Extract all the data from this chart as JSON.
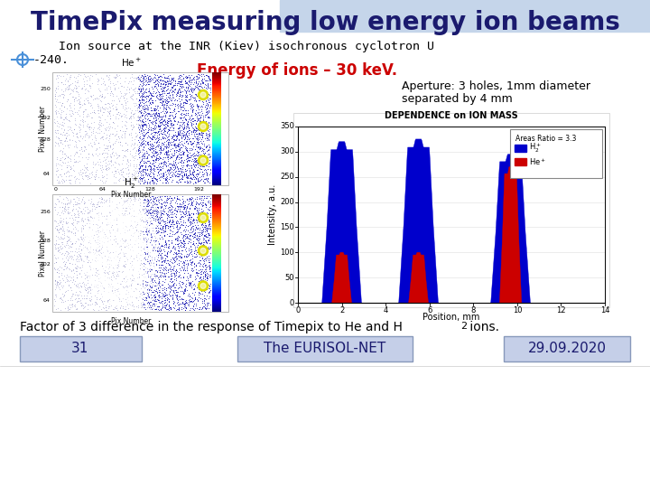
{
  "title": "TimePix measuring low energy ion beams",
  "title_color": "#1a1a6e",
  "subtitle_line1": "Ion source at the INR (Kiev) isochronous cyclotron U",
  "subtitle_line2": "-240.",
  "energy_text": "Energy of ions – 30 keV.",
  "energy_color": "#cc0000",
  "aperture_line1": "Aperture: 3 holes, 1mm diameter",
  "aperture_line2": "separated by 4 mm",
  "footer_text1": "31",
  "footer_text2": "The EURISOL-NET",
  "footer_text3": "29.09.2020",
  "footer_box_color": "#c5cfe8",
  "footer_box_border": "#8899bb",
  "footer_text_color": "#1a1a6e",
  "top_bar_color": "#c5d5ea",
  "factor_text": "Factor of 3 difference in the response of Timepix to He and H",
  "factor_sub": "2",
  "factor_suffix": " ions.",
  "body_bg": "#ffffff",
  "text_color": "#000000",
  "dep_label": "DEPENDENCE on ION MASS",
  "ylabel": "Intensity, a.u.",
  "xlabel": "Position, mm",
  "yticks": [
    0,
    50,
    100,
    150,
    200,
    250,
    300,
    350
  ],
  "xticks": [
    0,
    2,
    4,
    6,
    8,
    10,
    12,
    14
  ],
  "blue_color": "#0000cc",
  "red_color": "#cc0000",
  "legend_ratio": "Areas Ratio = 3.3",
  "legend_h2": "H",
  "legend_he": "He",
  "chart_xmax": 14,
  "chart_ymax": 350
}
